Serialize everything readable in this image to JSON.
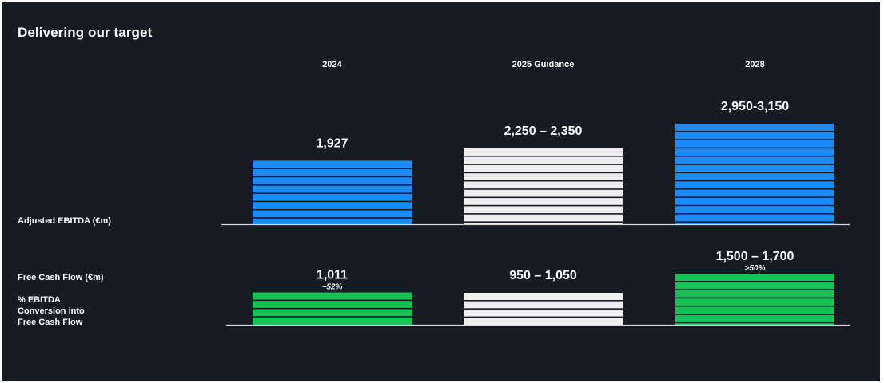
{
  "page": {
    "title": "Delivering our target",
    "row_labels": {
      "ebitda": "Adjusted EBITDA (€m)",
      "fcf": "Free Cash Flow (€m)",
      "conversion_line1": "% EBITDA",
      "conversion_line2": "Conversion into",
      "conversion_line3": "Free Cash Flow"
    }
  },
  "chart_data": [
    {
      "type": "bar",
      "categories": [
        "2024",
        "2025 Guidance",
        "2028"
      ],
      "series": [
        {
          "name": "Adjusted EBITDA (€m)",
          "values": [
            1927,
            2300,
            3050
          ],
          "labels": [
            "1,927",
            "2,250 – 2,350",
            "2,950-3,150"
          ]
        }
      ],
      "colors": [
        "#1a8cff",
        "#eeeeee",
        "#1a8cff"
      ]
    },
    {
      "type": "bar",
      "categories": [
        "2024",
        "2025 Guidance",
        "2028"
      ],
      "series": [
        {
          "name": "Free Cash Flow (€m)",
          "values": [
            1011,
            1000,
            1600
          ],
          "labels": [
            "1,011",
            "950 – 1,050",
            "1,500 – 1,700"
          ]
        }
      ],
      "conversion_labels": [
        "~52%",
        "",
        ">50%"
      ],
      "colors": [
        "#11c455",
        "#eeeeee",
        "#11c455"
      ]
    }
  ],
  "style": {
    "background": "#171b24",
    "text_color": "#ffffff",
    "axis_color": "#d9d9d9",
    "stripe_gap_color": "#171b24"
  }
}
